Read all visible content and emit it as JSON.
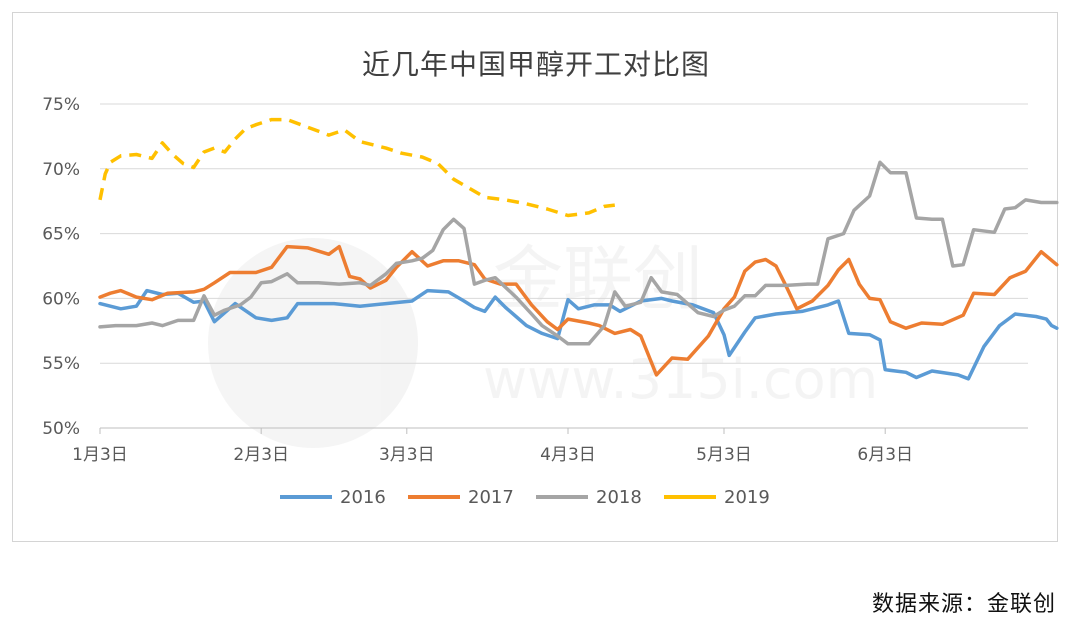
{
  "chart_data": {
    "type": "line",
    "title": "近几年中国甲醇开工对比图",
    "xlabel": "",
    "ylabel": "",
    "x_domain": [
      0,
      178
    ],
    "x_ticks": [
      {
        "x": 0,
        "label": "1月3日"
      },
      {
        "x": 31,
        "label": "2月3日"
      },
      {
        "x": 59,
        "label": "3月3日"
      },
      {
        "x": 90,
        "label": "4月3日"
      },
      {
        "x": 120,
        "label": "5月3日"
      },
      {
        "x": 151,
        "label": "6月3日"
      }
    ],
    "ylim": [
      50,
      75
    ],
    "y_ticks": [
      {
        "v": 50,
        "label": "50%"
      },
      {
        "v": 55,
        "label": "55%"
      },
      {
        "v": 60,
        "label": "60%"
      },
      {
        "v": 65,
        "label": "65%"
      },
      {
        "v": 70,
        "label": "70%"
      },
      {
        "v": 75,
        "label": "75%"
      }
    ],
    "grid": true,
    "legend_position": "bottom",
    "watermark": "金联创 www.315i.com",
    "series": [
      {
        "name": "2016",
        "color": "#5b9bd5",
        "dashed": false,
        "points": [
          [
            0,
            59.6
          ],
          [
            4,
            59.2
          ],
          [
            7,
            59.4
          ],
          [
            9,
            60.6
          ],
          [
            12,
            60.3
          ],
          [
            15,
            60.4
          ],
          [
            18,
            59.7
          ],
          [
            20,
            59.8
          ],
          [
            22,
            58.2
          ],
          [
            26,
            59.6
          ],
          [
            30,
            58.5
          ],
          [
            33,
            58.3
          ],
          [
            36,
            58.5
          ],
          [
            38,
            59.6
          ],
          [
            45,
            59.6
          ],
          [
            50,
            59.4
          ],
          [
            55,
            59.6
          ],
          [
            60,
            59.8
          ],
          [
            63,
            60.6
          ],
          [
            67,
            60.5
          ],
          [
            70,
            59.8
          ],
          [
            72,
            59.3
          ],
          [
            74,
            59.0
          ],
          [
            76,
            60.1
          ],
          [
            78,
            59.3
          ],
          [
            80,
            58.6
          ],
          [
            82,
            57.9
          ],
          [
            85,
            57.3
          ],
          [
            88,
            56.9
          ],
          [
            90,
            59.9
          ],
          [
            92,
            59.2
          ],
          [
            95,
            59.5
          ],
          [
            98,
            59.5
          ],
          [
            100,
            59.0
          ],
          [
            104,
            59.8
          ],
          [
            108,
            60.0
          ],
          [
            110,
            59.8
          ],
          [
            114,
            59.5
          ],
          [
            118,
            58.9
          ],
          [
            120,
            57.2
          ],
          [
            121,
            55.6
          ],
          [
            124,
            57.4
          ],
          [
            126,
            58.5
          ],
          [
            130,
            58.8
          ],
          [
            135,
            59.0
          ],
          [
            140,
            59.5
          ],
          [
            142,
            59.8
          ],
          [
            144,
            57.3
          ],
          [
            148,
            57.2
          ],
          [
            150,
            56.8
          ],
          [
            151,
            54.5
          ],
          [
            155,
            54.3
          ],
          [
            157,
            53.9
          ],
          [
            160,
            54.4
          ],
          [
            165,
            54.1
          ],
          [
            167,
            53.8
          ],
          [
            170,
            56.3
          ],
          [
            173,
            57.9
          ],
          [
            176,
            58.8
          ],
          [
            180,
            58.6
          ],
          [
            182,
            58.4
          ],
          [
            183,
            57.9
          ],
          [
            184,
            57.7
          ]
        ]
      },
      {
        "name": "2017",
        "color": "#ed7d31",
        "dashed": false,
        "points": [
          [
            0,
            60.1
          ],
          [
            2,
            60.4
          ],
          [
            4,
            60.6
          ],
          [
            7,
            60.1
          ],
          [
            10,
            59.9
          ],
          [
            13,
            60.4
          ],
          [
            18,
            60.5
          ],
          [
            20,
            60.7
          ],
          [
            22,
            61.2
          ],
          [
            25,
            62.0
          ],
          [
            30,
            62.0
          ],
          [
            33,
            62.4
          ],
          [
            36,
            64.0
          ],
          [
            40,
            63.9
          ],
          [
            44,
            63.4
          ],
          [
            46,
            64.0
          ],
          [
            48,
            61.7
          ],
          [
            50,
            61.5
          ],
          [
            52,
            60.8
          ],
          [
            55,
            61.4
          ],
          [
            57,
            62.4
          ],
          [
            60,
            63.6
          ],
          [
            63,
            62.5
          ],
          [
            66,
            62.9
          ],
          [
            69,
            62.9
          ],
          [
            72,
            62.6
          ],
          [
            74,
            61.5
          ],
          [
            77,
            61.1
          ],
          [
            80,
            61.1
          ],
          [
            83,
            59.5
          ],
          [
            86,
            58.2
          ],
          [
            88,
            57.6
          ],
          [
            90,
            58.4
          ],
          [
            94,
            58.1
          ],
          [
            96,
            57.9
          ],
          [
            99,
            57.3
          ],
          [
            102,
            57.6
          ],
          [
            104,
            57.1
          ],
          [
            107,
            54.1
          ],
          [
            110,
            55.4
          ],
          [
            113,
            55.3
          ],
          [
            117,
            57.1
          ],
          [
            120,
            59.2
          ],
          [
            122,
            60.1
          ],
          [
            124,
            62.1
          ],
          [
            126,
            62.8
          ],
          [
            128,
            63.0
          ],
          [
            130,
            62.5
          ],
          [
            132,
            60.9
          ],
          [
            134,
            59.2
          ],
          [
            137,
            59.8
          ],
          [
            140,
            61.0
          ],
          [
            142,
            62.2
          ],
          [
            144,
            63.0
          ],
          [
            146,
            61.1
          ],
          [
            148,
            60.0
          ],
          [
            150,
            59.9
          ],
          [
            152,
            58.2
          ],
          [
            155,
            57.7
          ],
          [
            158,
            58.1
          ],
          [
            162,
            58.0
          ],
          [
            166,
            58.7
          ],
          [
            168,
            60.4
          ],
          [
            172,
            60.3
          ],
          [
            175,
            61.6
          ],
          [
            178,
            62.1
          ],
          [
            181,
            63.6
          ],
          [
            184,
            62.6
          ]
        ]
      },
      {
        "name": "2018",
        "color": "#a5a5a5",
        "dashed": false,
        "points": [
          [
            0,
            57.8
          ],
          [
            3,
            57.9
          ],
          [
            7,
            57.9
          ],
          [
            10,
            58.1
          ],
          [
            12,
            57.9
          ],
          [
            15,
            58.3
          ],
          [
            18,
            58.3
          ],
          [
            20,
            60.2
          ],
          [
            22,
            58.7
          ],
          [
            24,
            59.1
          ],
          [
            27,
            59.5
          ],
          [
            29,
            60.1
          ],
          [
            31,
            61.2
          ],
          [
            33,
            61.3
          ],
          [
            36,
            61.9
          ],
          [
            38,
            61.2
          ],
          [
            42,
            61.2
          ],
          [
            46,
            61.1
          ],
          [
            50,
            61.2
          ],
          [
            52,
            61.0
          ],
          [
            55,
            61.9
          ],
          [
            57,
            62.7
          ],
          [
            60,
            62.9
          ],
          [
            62,
            63.1
          ],
          [
            64,
            63.7
          ],
          [
            66,
            65.3
          ],
          [
            68,
            66.1
          ],
          [
            70,
            65.4
          ],
          [
            72,
            61.1
          ],
          [
            74,
            61.4
          ],
          [
            76,
            61.6
          ],
          [
            80,
            60.1
          ],
          [
            83,
            58.8
          ],
          [
            85,
            57.9
          ],
          [
            88,
            57.1
          ],
          [
            90,
            56.5
          ],
          [
            94,
            56.5
          ],
          [
            97,
            57.9
          ],
          [
            99,
            60.5
          ],
          [
            101,
            59.4
          ],
          [
            104,
            59.7
          ],
          [
            106,
            61.6
          ],
          [
            108,
            60.5
          ],
          [
            111,
            60.3
          ],
          [
            115,
            58.9
          ],
          [
            118,
            58.6
          ],
          [
            120,
            59.1
          ],
          [
            122,
            59.4
          ],
          [
            124,
            60.2
          ],
          [
            126,
            60.2
          ],
          [
            128,
            61.0
          ],
          [
            132,
            61.0
          ],
          [
            136,
            61.1
          ],
          [
            138,
            61.1
          ],
          [
            140,
            64.6
          ],
          [
            143,
            65.0
          ],
          [
            145,
            66.8
          ],
          [
            148,
            67.9
          ],
          [
            150,
            70.5
          ],
          [
            152,
            69.7
          ],
          [
            155,
            69.7
          ],
          [
            157,
            66.2
          ],
          [
            160,
            66.1
          ],
          [
            162,
            66.1
          ],
          [
            164,
            62.5
          ],
          [
            166,
            62.6
          ],
          [
            168,
            65.3
          ],
          [
            172,
            65.1
          ],
          [
            174,
            66.9
          ],
          [
            176,
            67.0
          ],
          [
            178,
            67.6
          ],
          [
            181,
            67.4
          ],
          [
            184,
            67.4
          ]
        ]
      },
      {
        "name": "2019",
        "color": "#ffc000",
        "dashed": true,
        "points": [
          [
            0,
            67.6
          ],
          [
            1,
            69.6
          ],
          [
            2,
            70.5
          ],
          [
            4,
            71.0
          ],
          [
            7,
            71.1
          ],
          [
            10,
            70.8
          ],
          [
            12,
            72.0
          ],
          [
            14,
            71.1
          ],
          [
            16,
            70.4
          ],
          [
            18,
            70.1
          ],
          [
            20,
            71.3
          ],
          [
            22,
            71.6
          ],
          [
            24,
            71.3
          ],
          [
            26,
            72.3
          ],
          [
            28,
            73.1
          ],
          [
            30,
            73.4
          ],
          [
            33,
            73.8
          ],
          [
            36,
            73.8
          ],
          [
            40,
            73.2
          ],
          [
            44,
            72.6
          ],
          [
            47,
            73.0
          ],
          [
            50,
            72.1
          ],
          [
            55,
            71.6
          ],
          [
            58,
            71.2
          ],
          [
            62,
            70.9
          ],
          [
            65,
            70.4
          ],
          [
            68,
            69.2
          ],
          [
            71,
            68.5
          ],
          [
            74,
            67.8
          ],
          [
            78,
            67.6
          ],
          [
            82,
            67.3
          ],
          [
            86,
            66.9
          ],
          [
            90,
            66.4
          ],
          [
            94,
            66.6
          ],
          [
            97,
            67.1
          ],
          [
            99,
            67.2
          ]
        ]
      }
    ]
  },
  "source_note": "数据来源：金联创"
}
